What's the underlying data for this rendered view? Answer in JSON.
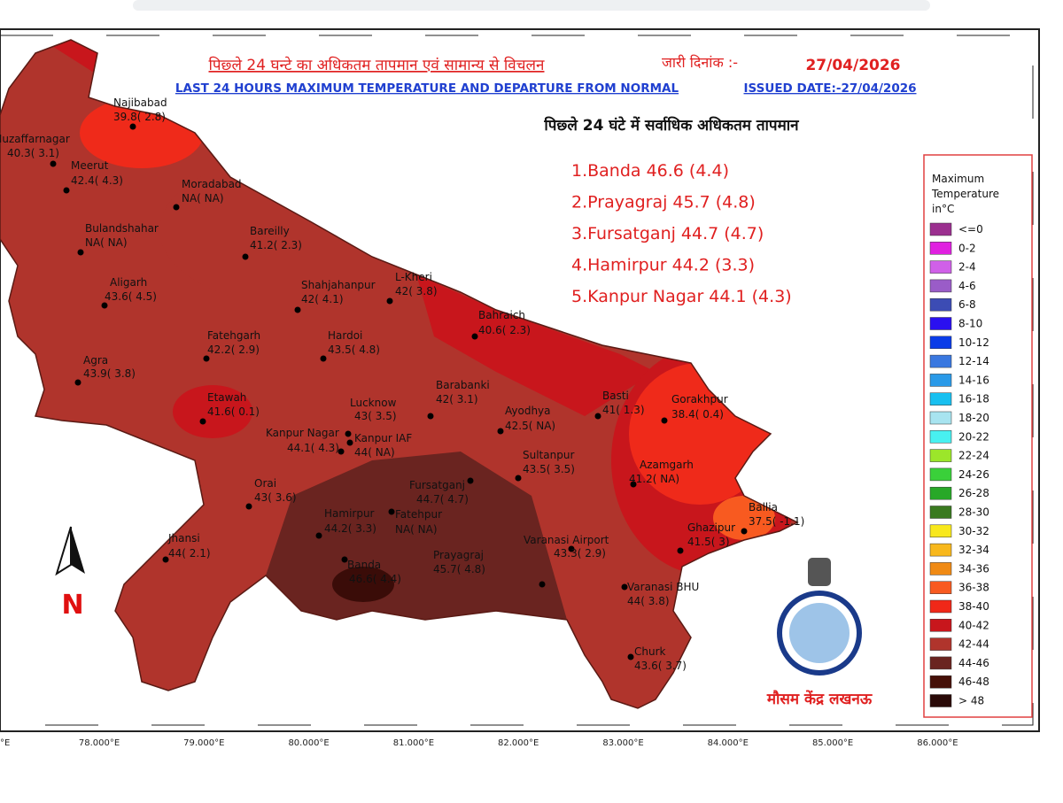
{
  "header": {
    "title_hindi": "पिछ्ले 24 घन्टे का अधिकतम तापमान एवं सामान्य से विचलन",
    "issued_label_hindi": "जारी दिनांक :-",
    "issued_date": "27/04/2026",
    "title_english": "LAST 24 HOURS MAXIMUM TEMPERATURE AND DEPARTURE FROM NORMAL",
    "issued_english": "ISSUED DATE:-27/04/2026"
  },
  "top5": {
    "title": "पिछ्ले 24 घंटे में सर्वाधिक अधिकतम तापमान",
    "items": [
      "1.Banda 46.6 (4.4)",
      "2.Prayagraj 45.7 (4.8)",
      "3.Fursatganj 44.7 (4.7)",
      "4.Hamirpur 44.2 (3.3)",
      "5.Kanpur Nagar 44.1 (4.3)"
    ]
  },
  "stations": [
    {
      "name": "Muzaffarnagar",
      "value": "40.3( 3.1)"
    },
    {
      "name": "Najibabad",
      "value": "39.8( 2.8)"
    },
    {
      "name": "Meerut",
      "value": "42.4( 4.3)"
    },
    {
      "name": "Moradabad",
      "value": "NA( NA)"
    },
    {
      "name": "Bulandshahar",
      "value": "NA( NA)"
    },
    {
      "name": "Bareilly",
      "value": "41.2( 2.3)"
    },
    {
      "name": "Aligarh",
      "value": "43.6( 4.5)"
    },
    {
      "name": "Shahjahanpur",
      "value": "42( 4.1)"
    },
    {
      "name": "L-Kheri",
      "value": "42( 3.8)"
    },
    {
      "name": "Bahraich",
      "value": "40.6( 2.3)"
    },
    {
      "name": "Fatehgarh",
      "value": "42.2( 2.9)"
    },
    {
      "name": "Hardoi",
      "value": "43.5( 4.8)"
    },
    {
      "name": "Agra",
      "value": "43.9( 3.8)"
    },
    {
      "name": "Etawah",
      "value": "41.6( 0.1)"
    },
    {
      "name": "Lucknow",
      "value": "43( 3.5)"
    },
    {
      "name": "Barabanki",
      "value": "42( 3.1)"
    },
    {
      "name": "Basti",
      "value": "41( 1.3)"
    },
    {
      "name": "Gorakhpur",
      "value": "38.4( 0.4)"
    },
    {
      "name": "Ayodhya",
      "value": "42.5( NA)"
    },
    {
      "name": "Kanpur Nagar",
      "value": "44.1( 4.3)"
    },
    {
      "name": "Kanpur IAF",
      "value": "44( NA)"
    },
    {
      "name": "Sultanpur",
      "value": "43.5( 3.5)"
    },
    {
      "name": "Azamgarh",
      "value": "41.2( NA)"
    },
    {
      "name": "Fursatganj",
      "value": "44.7( 4.7)"
    },
    {
      "name": "Orai",
      "value": "43( 3.6)"
    },
    {
      "name": "Ballia",
      "value": "37.5( -1.1)"
    },
    {
      "name": "Hamirpur",
      "value": "44.2( 3.3)"
    },
    {
      "name": "Fatehpur",
      "value": "NA( NA)"
    },
    {
      "name": "Ghazipur",
      "value": "41.5( 3)"
    },
    {
      "name": "Varanasi Airport",
      "value": "43.3( 2.9)"
    },
    {
      "name": "Jhansi",
      "value": "44( 2.1)"
    },
    {
      "name": "Banda",
      "value": "46.6( 4.4)"
    },
    {
      "name": "Prayagraj",
      "value": "45.7( 4.8)"
    },
    {
      "name": "Varanasi BHU",
      "value": "44( 3.8)"
    },
    {
      "name": "Churk",
      "value": "43.6( 3.7)"
    }
  ],
  "legend": {
    "title": [
      "Maximum",
      "Temperature",
      "in°C"
    ],
    "items": [
      {
        "label": "<=0",
        "color": "#9b2f8f"
      },
      {
        "label": "0-2",
        "color": "#e020e0"
      },
      {
        "label": "2-4",
        "color": "#d060e8"
      },
      {
        "label": "4-6",
        "color": "#9a5cc8"
      },
      {
        "label": "6-8",
        "color": "#3c4cb4"
      },
      {
        "label": "8-10",
        "color": "#2a10f0"
      },
      {
        "label": "10-12",
        "color": "#0a3ce8"
      },
      {
        "label": "12-14",
        "color": "#3a78e0"
      },
      {
        "label": "14-16",
        "color": "#2a9ae8"
      },
      {
        "label": "16-18",
        "color": "#18c0f0"
      },
      {
        "label": "18-20",
        "color": "#a8e4f0"
      },
      {
        "label": "20-22",
        "color": "#48f0f0"
      },
      {
        "label": "22-24",
        "color": "#9ce62a"
      },
      {
        "label": "24-26",
        "color": "#3ad03a"
      },
      {
        "label": "26-28",
        "color": "#28a828"
      },
      {
        "label": "28-30",
        "color": "#3a7a20"
      },
      {
        "label": "30-32",
        "color": "#f8e81c"
      },
      {
        "label": "32-34",
        "color": "#f8b81c"
      },
      {
        "label": "34-36",
        "color": "#f08a14"
      },
      {
        "label": "36-38",
        "color": "#f85a20"
      },
      {
        "label": "38-40",
        "color": "#f02818"
      },
      {
        "label": "40-42",
        "color": "#c8161c"
      },
      {
        "label": "42-44",
        "color": "#b0342c"
      },
      {
        "label": "44-46",
        "color": "#6a2420"
      },
      {
        "label": "46-48",
        "color": "#461008"
      },
      {
        "label": "> 48",
        "color": "#2a0a08"
      }
    ]
  },
  "longitudes": [
    "°E",
    "78.000°E",
    "79.000°E",
    "80.000°E",
    "81.000°E",
    "82.000°E",
    "83.000°E",
    "84.000°E",
    "85.000°E",
    "86.000°E"
  ],
  "north": "N",
  "footer": "मौसम केंद्र लखनऊ"
}
